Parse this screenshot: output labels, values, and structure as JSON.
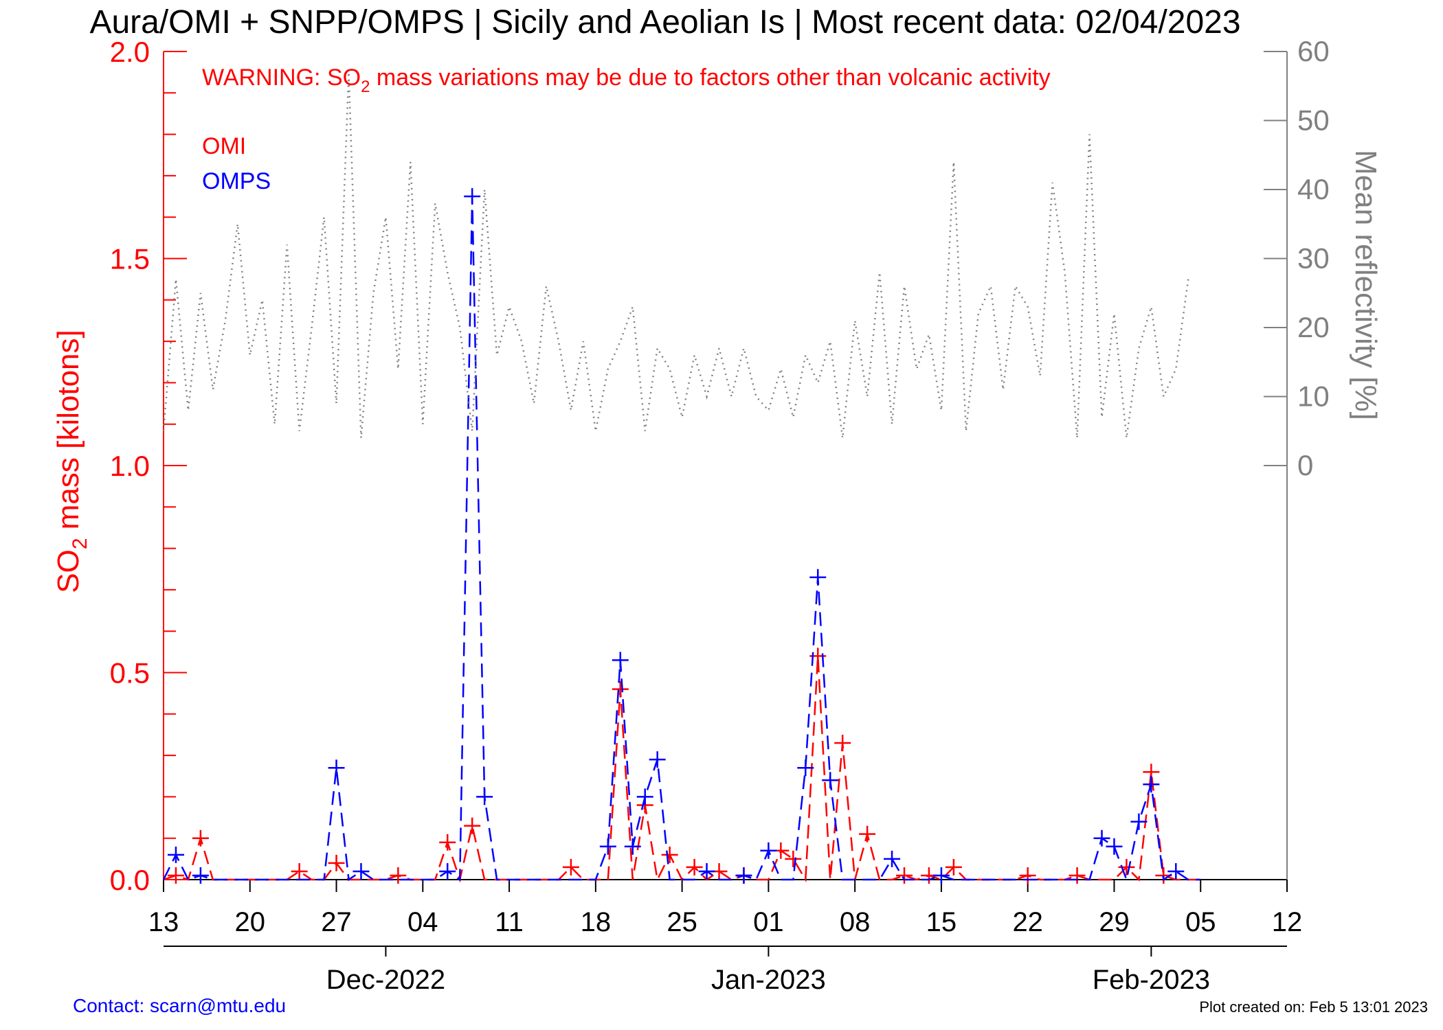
{
  "colors": {
    "omi": "#ff0000",
    "omps": "#0000ff",
    "reflectivity": "#808080",
    "axis": "#000000"
  },
  "title": "Aura/OMI + SNPP/OMPS | Sicily and Aeolian Is | Most recent data: 02/04/2023",
  "warning": {
    "pre": "WARNING: SO",
    "sub": "2",
    "post": " mass variations may be due to factors other than volcanic activity"
  },
  "legend": {
    "omi": "OMI",
    "omps": "OMPS"
  },
  "footer": {
    "contact": "Contact: scarn@mtu.edu",
    "created": "Plot created on: Feb  5 13:01 2023"
  },
  "chart_data": {
    "type": "line",
    "x_unit": "days since 2022-11-13",
    "xlim": [
      0,
      91
    ],
    "x_ticks": [
      {
        "x": 0,
        "label": "13"
      },
      {
        "x": 7,
        "label": "20"
      },
      {
        "x": 14,
        "label": "27"
      },
      {
        "x": 21,
        "label": "04"
      },
      {
        "x": 28,
        "label": "11"
      },
      {
        "x": 35,
        "label": "18"
      },
      {
        "x": 42,
        "label": "25"
      },
      {
        "x": 49,
        "label": "01"
      },
      {
        "x": 56,
        "label": "08"
      },
      {
        "x": 63,
        "label": "15"
      },
      {
        "x": 70,
        "label": "22"
      },
      {
        "x": 77,
        "label": "29"
      },
      {
        "x": 84,
        "label": "05"
      },
      {
        "x": 91,
        "label": "12"
      }
    ],
    "month_ticks": [
      {
        "x": 18,
        "label": "Dec-2022"
      },
      {
        "x": 49,
        "label": "Jan-2023"
      },
      {
        "x": 80,
        "label": "Feb-2023"
      }
    ],
    "ylabel": {
      "pre": "SO",
      "sub": "2",
      "post": " mass [kilotons]"
    },
    "ylim": [
      0,
      2.0
    ],
    "y_ticks": [
      {
        "v": 0,
        "label": "0.0"
      },
      {
        "v": 0.5,
        "label": "0.5"
      },
      {
        "v": 1.0,
        "label": "1.0"
      },
      {
        "v": 1.5,
        "label": "1.5"
      },
      {
        "v": 2.0,
        "label": "2.0"
      }
    ],
    "y2label": "Mean reflectivity [%]",
    "y2lim": [
      0,
      60
    ],
    "y2_ticks": [
      {
        "v": 0,
        "label": "0"
      },
      {
        "v": 10,
        "label": "10"
      },
      {
        "v": 20,
        "label": "20"
      },
      {
        "v": 30,
        "label": "30"
      },
      {
        "v": 40,
        "label": "40"
      },
      {
        "v": 50,
        "label": "50"
      },
      {
        "v": 60,
        "label": "60"
      }
    ],
    "series": [
      {
        "name": "OMI",
        "marker": "+",
        "x": [
          0,
          1,
          2,
          3,
          4,
          5,
          6,
          7,
          8,
          9,
          10,
          11,
          12,
          13,
          14,
          15,
          16,
          17,
          18,
          19,
          20,
          21,
          22,
          23,
          24,
          25,
          26,
          27,
          28,
          29,
          30,
          31,
          32,
          33,
          34,
          35,
          36,
          37,
          38,
          39,
          40,
          41,
          42,
          43,
          44,
          45,
          46,
          47,
          48,
          49,
          50,
          51,
          52,
          53,
          54,
          55,
          56,
          57,
          58,
          59,
          60,
          61,
          62,
          63,
          64,
          65,
          66,
          67,
          68,
          69,
          70,
          71,
          72,
          73,
          74,
          75,
          76,
          77,
          78,
          79,
          80,
          81,
          82,
          83,
          84
        ],
        "y": [
          0.0,
          0.01,
          0.0,
          0.1,
          0.0,
          0.0,
          0.0,
          0.0,
          0.0,
          0.0,
          0.0,
          0.02,
          0.0,
          0.0,
          0.04,
          0.0,
          0.0,
          0.0,
          0.0,
          0.01,
          0.0,
          0.0,
          0.0,
          0.09,
          0.0,
          0.13,
          0.0,
          0.0,
          0.0,
          0.0,
          0.0,
          0.0,
          0.0,
          0.03,
          0.0,
          0.0,
          0.0,
          0.46,
          0.0,
          0.18,
          0.0,
          0.06,
          0.0,
          0.03,
          0.0,
          0.02,
          0.0,
          0.01,
          0.0,
          0.0,
          0.07,
          0.05,
          0.0,
          0.54,
          0.0,
          0.33,
          0.0,
          0.11,
          0.0,
          0.0,
          0.01,
          0.0,
          0.01,
          0.0,
          0.03,
          0.0,
          0.0,
          0.0,
          0.0,
          0.0,
          0.01,
          0.0,
          0.0,
          0.0,
          0.01,
          0.0,
          0.0,
          0.0,
          0.03,
          0.0,
          0.26,
          0.01,
          0.0,
          0.0,
          0.0
        ]
      },
      {
        "name": "OMPS",
        "marker": "+",
        "x": [
          0,
          1,
          2,
          3,
          4,
          5,
          6,
          7,
          8,
          9,
          10,
          11,
          12,
          13,
          14,
          15,
          16,
          17,
          18,
          19,
          20,
          21,
          22,
          23,
          24,
          25,
          26,
          27,
          28,
          29,
          30,
          31,
          32,
          33,
          34,
          35,
          36,
          37,
          38,
          39,
          40,
          41,
          42,
          43,
          44,
          45,
          46,
          47,
          48,
          49,
          50,
          51,
          52,
          53,
          54,
          55,
          56,
          57,
          58,
          59,
          60,
          61,
          62,
          63,
          64,
          65,
          66,
          67,
          68,
          69,
          70,
          71,
          72,
          73,
          74,
          75,
          76,
          77,
          78,
          79,
          80,
          81,
          82,
          83,
          84
        ],
        "y": [
          0.0,
          0.06,
          0.0,
          0.01,
          0.0,
          0.0,
          0.0,
          0.0,
          0.0,
          0.0,
          0.0,
          0.0,
          0.0,
          0.0,
          0.27,
          0.0,
          0.02,
          0.0,
          0.0,
          0.0,
          0.0,
          0.0,
          0.0,
          0.02,
          0.0,
          1.65,
          0.2,
          0.0,
          0.0,
          0.0,
          0.0,
          0.0,
          0.0,
          0.0,
          0.0,
          0.0,
          0.08,
          0.53,
          0.08,
          0.2,
          0.29,
          0.0,
          0.0,
          0.0,
          0.02,
          0.0,
          0.0,
          0.01,
          0.0,
          0.07,
          0.0,
          0.0,
          0.27,
          0.73,
          0.24,
          0.0,
          0.0,
          0.0,
          0.0,
          0.05,
          0.0,
          0.0,
          0.0,
          0.01,
          0.0,
          0.0,
          0.0,
          0.0,
          0.0,
          0.0,
          0.0,
          0.0,
          0.0,
          0.0,
          0.0,
          0.0,
          0.1,
          0.08,
          0.0,
          0.14,
          0.23,
          0.0,
          0.02,
          0.0,
          0.0
        ]
      },
      {
        "name": "Mean reflectivity",
        "axis": "y2",
        "style": "dotted",
        "x": [
          0,
          1,
          2,
          3,
          4,
          5,
          6,
          7,
          8,
          9,
          10,
          11,
          12,
          13,
          14,
          15,
          16,
          17,
          18,
          19,
          20,
          21,
          22,
          23,
          24,
          25,
          26,
          27,
          28,
          29,
          30,
          31,
          32,
          33,
          34,
          35,
          36,
          37,
          38,
          39,
          40,
          41,
          42,
          43,
          44,
          45,
          46,
          47,
          48,
          49,
          50,
          51,
          52,
          53,
          54,
          55,
          56,
          57,
          58,
          59,
          60,
          61,
          62,
          63,
          64,
          65,
          66,
          67,
          68,
          69,
          70,
          71,
          72,
          73,
          74,
          75,
          76,
          77,
          78,
          79,
          80,
          81,
          82,
          83
        ],
        "y": [
          5,
          27,
          8,
          25,
          11,
          21,
          35,
          16,
          24,
          6,
          32,
          5,
          20,
          36,
          9,
          57,
          4,
          25,
          36,
          14,
          44,
          6,
          38,
          28,
          20,
          5,
          40,
          16,
          23,
          18,
          9,
          26,
          18,
          8,
          18,
          5,
          14,
          18,
          23,
          5,
          17,
          14,
          7,
          16,
          10,
          17,
          10,
          17,
          10,
          8,
          14,
          7,
          16,
          12,
          18,
          4,
          21,
          10,
          28,
          6,
          26,
          14,
          19,
          8,
          44,
          5,
          22,
          26,
          11,
          26,
          23,
          13,
          41,
          28,
          4,
          48,
          7,
          22,
          4,
          17,
          23,
          10,
          14,
          27
        ]
      }
    ]
  }
}
